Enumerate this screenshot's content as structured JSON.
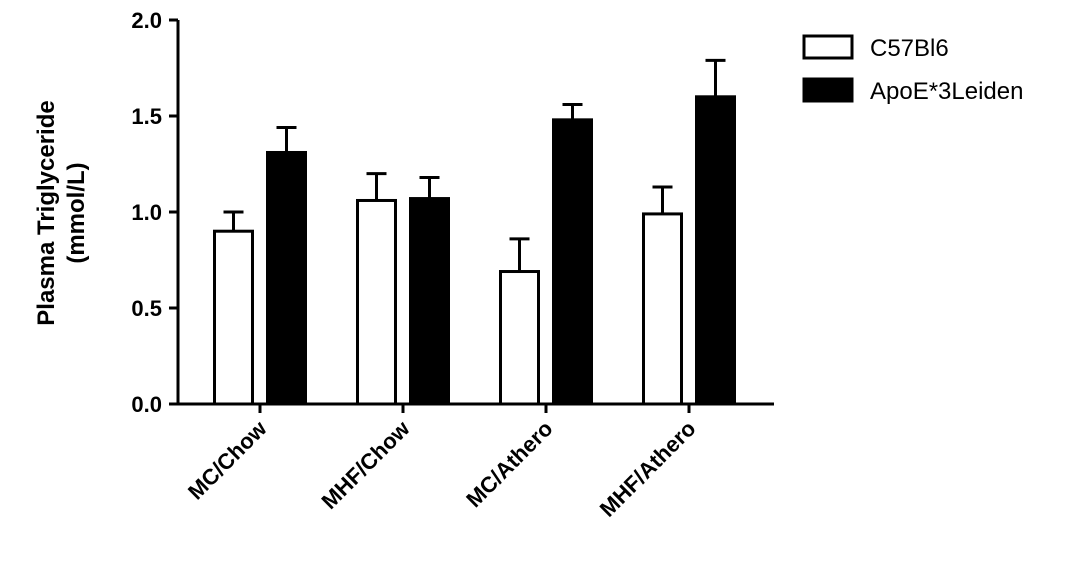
{
  "chart_data": {
    "type": "bar",
    "ylabel_line1": "Plasma Triglyceride",
    "ylabel_line2": "(mmol/L)",
    "ylim": [
      0,
      2
    ],
    "yticks": [
      "0.0",
      "0.5",
      "1.0",
      "1.5",
      "2.0"
    ],
    "categories": [
      "MC/Chow",
      "MHF/Chow",
      "MC/Athero",
      "MHF/Athero"
    ],
    "series": [
      {
        "name": "C57Bl6",
        "values": [
          0.9,
          1.06,
          0.69,
          0.99
        ],
        "errors": [
          0.1,
          0.14,
          0.17,
          0.14
        ],
        "fill": "#ffffff"
      },
      {
        "name": "ApoE*3Leiden",
        "values": [
          1.31,
          1.07,
          1.48,
          1.6
        ],
        "errors": [
          0.13,
          0.11,
          0.08,
          0.19
        ],
        "fill": "#000000"
      }
    ],
    "legend": "top-right",
    "grid": false
  }
}
